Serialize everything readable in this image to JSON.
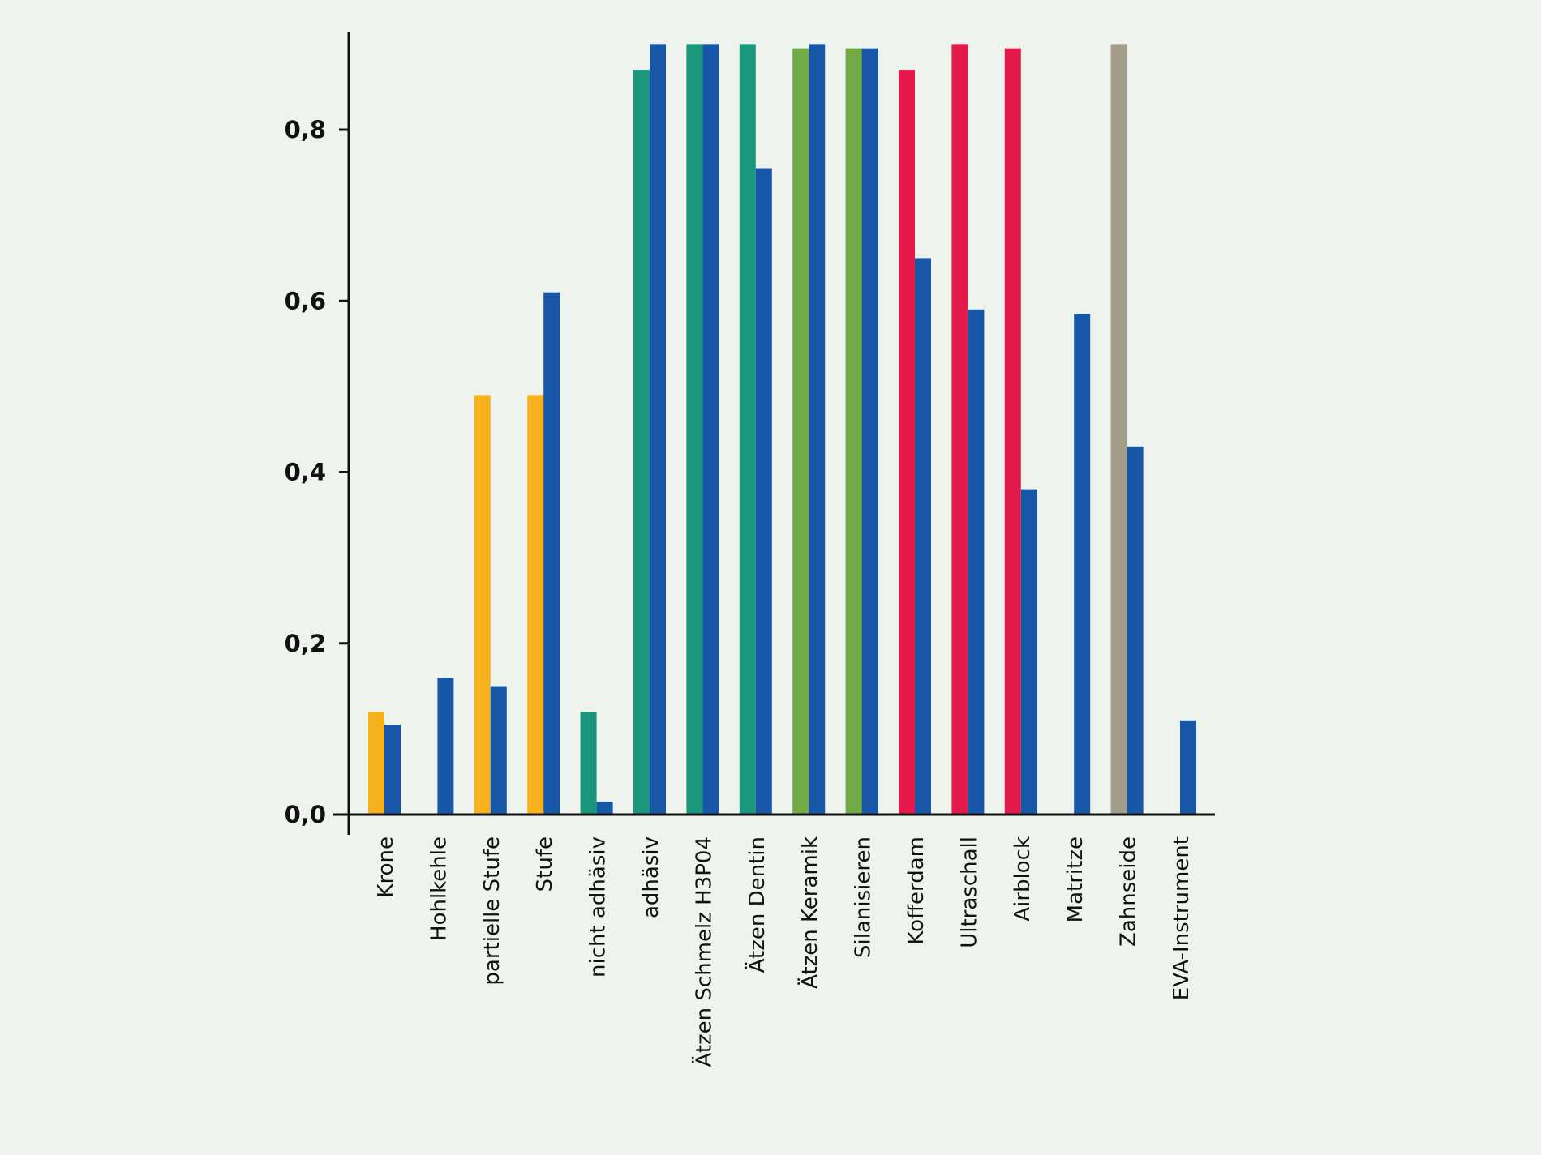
{
  "chart_data": {
    "type": "bar",
    "title": "",
    "xlabel": "",
    "ylabel": "",
    "ylim": [
      0,
      0.9
    ],
    "grid": false,
    "legend": "none",
    "y_ticks": [
      {
        "value": 0.0,
        "label": "0,0"
      },
      {
        "value": 0.2,
        "label": "0,2"
      },
      {
        "value": 0.4,
        "label": "0,4"
      },
      {
        "value": 0.6,
        "label": "0,6"
      },
      {
        "value": 0.8,
        "label": "0,8"
      }
    ],
    "categories": [
      "Krone",
      "Hohlkehle",
      "partielle Stufe",
      "Stufe",
      "nicht adhäsiv",
      "adhäsiv",
      "Ätzen Schmelz H3P04",
      "Ätzen Dentin",
      "Ätzen Keramik",
      "Silanisieren",
      "Kofferdam",
      "Ultraschall",
      "Airblock",
      "Matritze",
      "Zahnseide",
      "EVA-Instrument"
    ],
    "series": [
      {
        "values": [
          0.12,
          null,
          0.49,
          0.49,
          0.12,
          0.87,
          0.9,
          0.9,
          0.895,
          0.895,
          0.87,
          0.9,
          0.895,
          null,
          0.9,
          null
        ],
        "colors": [
          "#f7b11c",
          "#f7b11c",
          "#f7b11c",
          "#f7b11c",
          "#1a977a",
          "#1a977a",
          "#1a977a",
          "#1a977a",
          "#72ab45",
          "#72ab45",
          "#e5194c",
          "#e5194c",
          "#e5194c",
          "#e5194c",
          "#a29c88",
          "#a29c88"
        ]
      },
      {
        "values": [
          0.105,
          0.16,
          0.15,
          0.61,
          0.015,
          0.9,
          0.9,
          0.755,
          0.9,
          0.895,
          0.65,
          0.59,
          0.38,
          0.585,
          0.43,
          0.11
        ],
        "color": "#1856a8"
      }
    ]
  }
}
